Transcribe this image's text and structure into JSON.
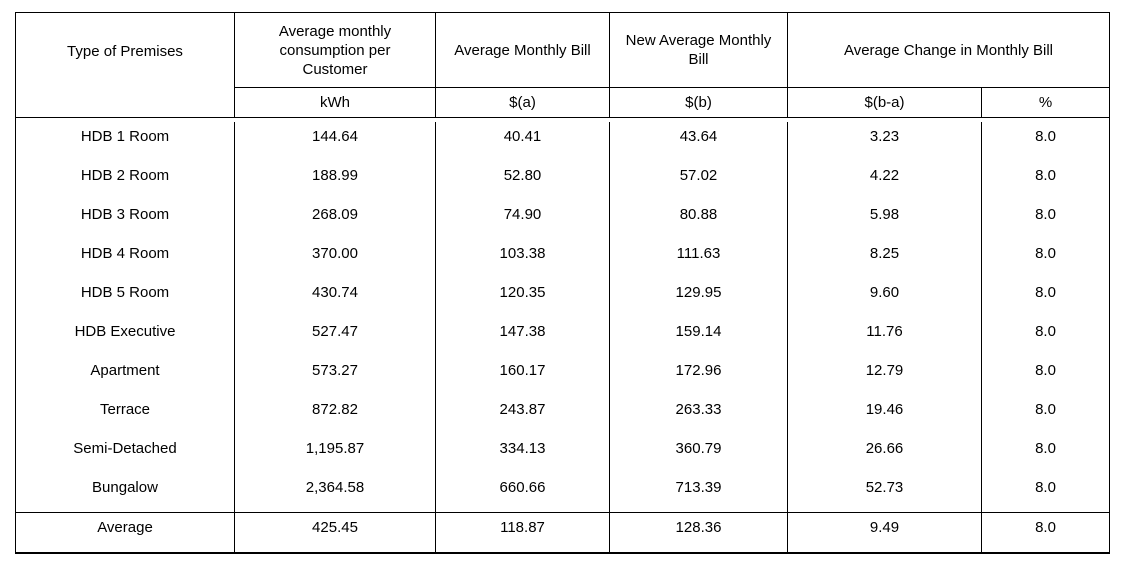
{
  "table": {
    "header": {
      "type_of_premises": "Type of Premises",
      "avg_consumption": "Average monthly consumption per Customer",
      "avg_monthly_bill": "Average Monthly Bill",
      "new_avg_monthly_bill": "New Average Monthly Bill",
      "avg_change_monthly_bill": "Average Change in Monthly Bill",
      "unit_kwh": "kWh",
      "unit_bill_a": "$(a)",
      "unit_bill_b": "$(b)",
      "unit_change_amount": "$(b-a)",
      "unit_change_percent": "%"
    },
    "rows": [
      {
        "premises": "HDB 1 Room",
        "kwh": "144.64",
        "bill_a": "40.41",
        "bill_b": "43.64",
        "change": "3.23",
        "pct": "8.0"
      },
      {
        "premises": "HDB 2 Room",
        "kwh": "188.99",
        "bill_a": "52.80",
        "bill_b": "57.02",
        "change": "4.22",
        "pct": "8.0"
      },
      {
        "premises": "HDB 3 Room",
        "kwh": "268.09",
        "bill_a": "74.90",
        "bill_b": "80.88",
        "change": "5.98",
        "pct": "8.0"
      },
      {
        "premises": "HDB 4 Room",
        "kwh": "370.00",
        "bill_a": "103.38",
        "bill_b": "111.63",
        "change": "8.25",
        "pct": "8.0"
      },
      {
        "premises": "HDB 5 Room",
        "kwh": "430.74",
        "bill_a": "120.35",
        "bill_b": "129.95",
        "change": "9.60",
        "pct": "8.0"
      },
      {
        "premises": "HDB Executive",
        "kwh": "527.47",
        "bill_a": "147.38",
        "bill_b": "159.14",
        "change": "11.76",
        "pct": "8.0"
      },
      {
        "premises": "Apartment",
        "kwh": "573.27",
        "bill_a": "160.17",
        "bill_b": "172.96",
        "change": "12.79",
        "pct": "8.0"
      },
      {
        "premises": "Terrace",
        "kwh": "872.82",
        "bill_a": "243.87",
        "bill_b": "263.33",
        "change": "19.46",
        "pct": "8.0"
      },
      {
        "premises": "Semi-Detached",
        "kwh": "1,195.87",
        "bill_a": "334.13",
        "bill_b": "360.79",
        "change": "26.66",
        "pct": "8.0"
      },
      {
        "premises": "Bungalow",
        "kwh": "2,364.58",
        "bill_a": "660.66",
        "bill_b": "713.39",
        "change": "52.73",
        "pct": "8.0"
      }
    ],
    "average": {
      "premises": "Average",
      "kwh": "425.45",
      "bill_a": "118.87",
      "bill_b": "128.36",
      "change": "9.49",
      "pct": "8.0"
    },
    "colors": {
      "border": "#000000",
      "text": "#000000",
      "background": "#ffffff"
    }
  }
}
